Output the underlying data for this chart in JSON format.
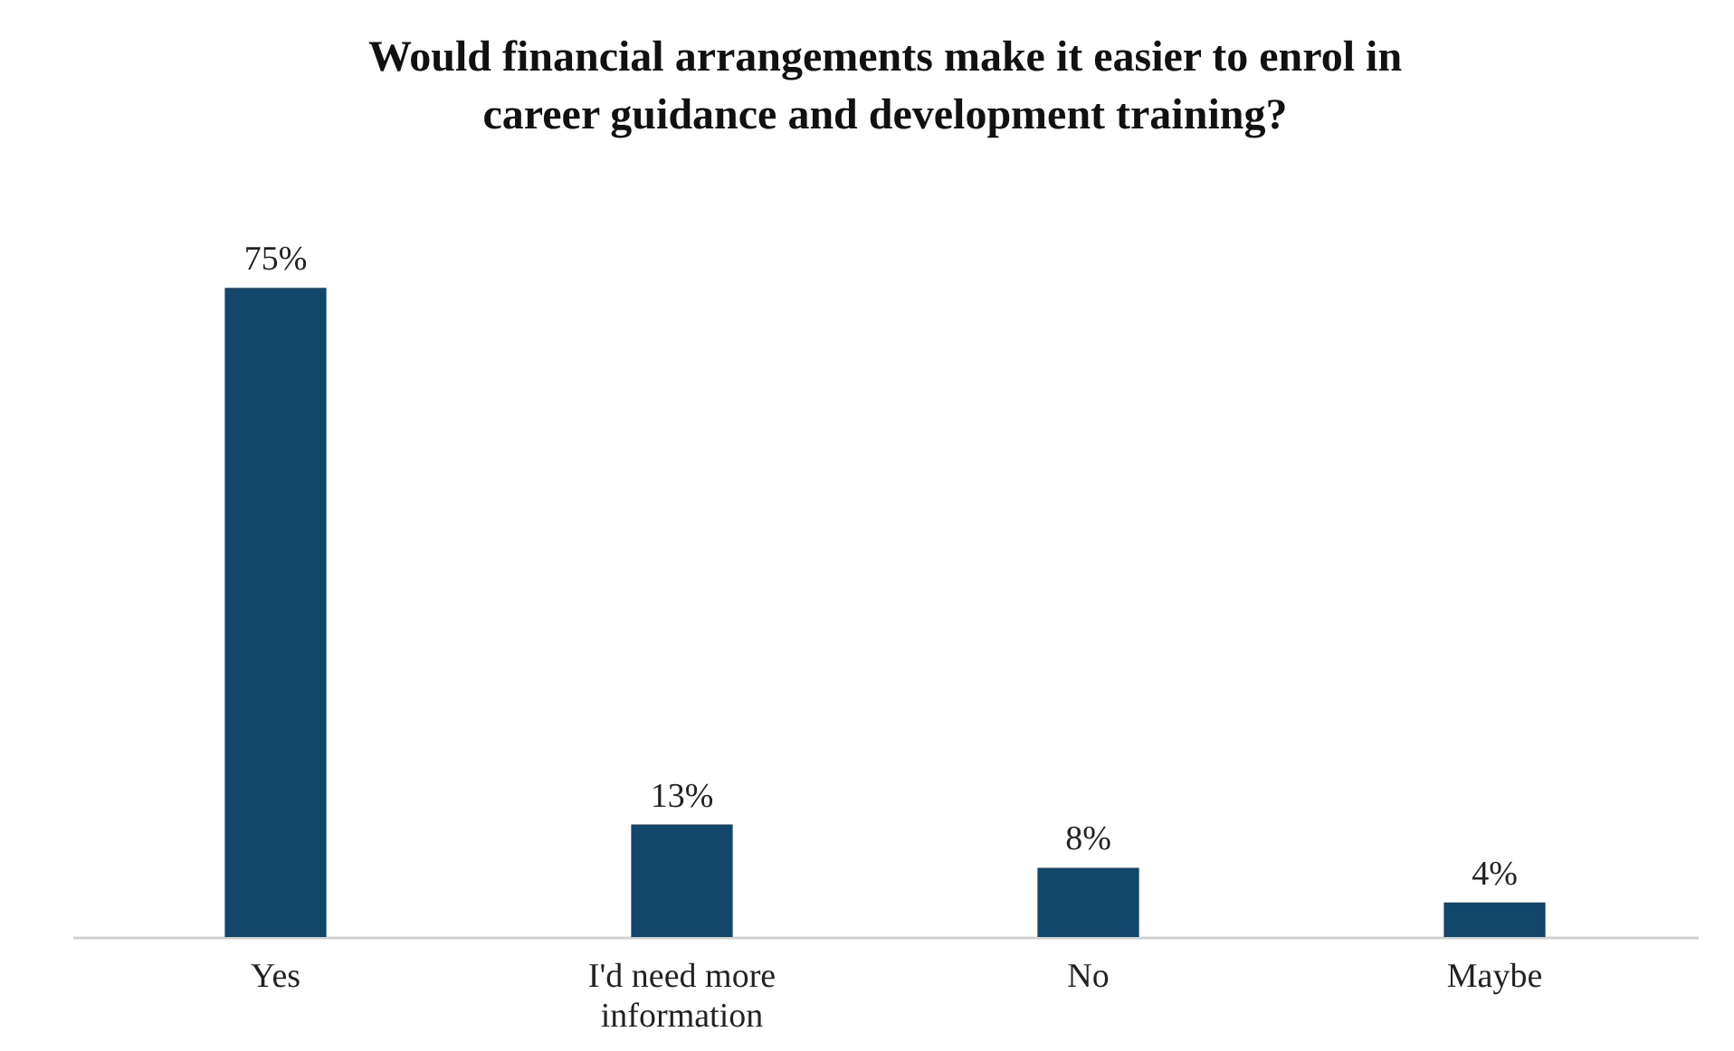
{
  "chart_data": {
    "type": "bar",
    "title": "Would financial arrangements make it easier to enrol in career guidance and development training?",
    "categories": [
      "Yes",
      "I'd need more information",
      "No",
      "Maybe"
    ],
    "values": [
      75,
      13,
      8,
      4
    ],
    "value_labels": [
      "75%",
      "13%",
      "8%",
      "4%"
    ],
    "color": "#12466b"
  }
}
